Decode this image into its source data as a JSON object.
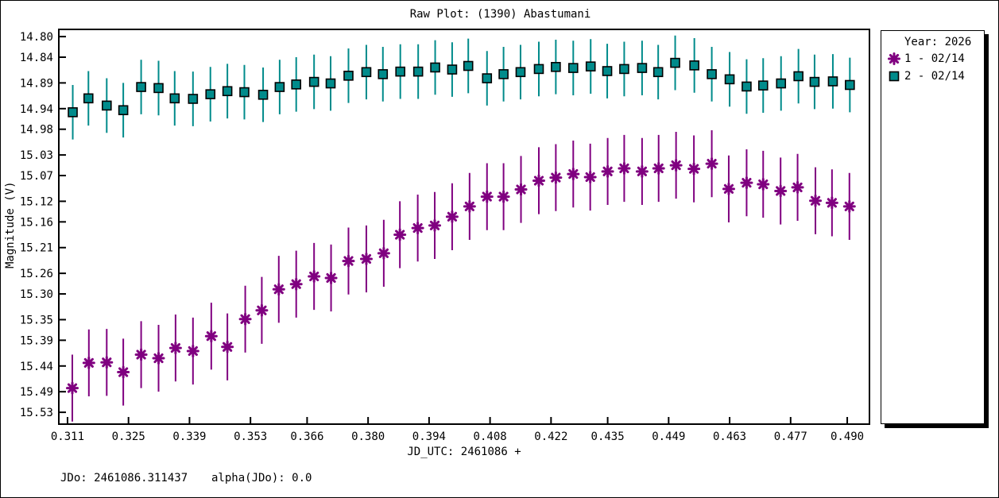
{
  "title": "Raw Plot: (1390) Abastumani",
  "legend": {
    "title": "Year: 2026",
    "items": [
      {
        "label": "1 - 02/14",
        "marker": "asterisk",
        "color": "#800080"
      },
      {
        "label": "2 - 02/14",
        "marker": "square",
        "color": "#008B8B"
      }
    ]
  },
  "footer": {
    "jdo": "JDo: 2461086.311437",
    "alpha": "alpha(JDo): 0.0"
  },
  "chart_data": {
    "type": "scatter",
    "title": "Raw Plot: (1390) Abastumani",
    "xlabel": "JD_UTC: 2461086 +",
    "ylabel": "Magnitude (V)",
    "grid": false,
    "legend_position": "right-outside",
    "y_axis_inverted_magnitude": true,
    "xlim": [
      0.309,
      0.4951
    ],
    "ylim": [
      14.786,
      15.553
    ],
    "x_tick_labels": [
      "0.311",
      "0.325",
      "0.339",
      "0.353",
      "0.366",
      "0.380",
      "0.394",
      "0.408",
      "0.422",
      "0.435",
      "0.449",
      "0.463",
      "0.477",
      "0.490"
    ],
    "y_tick_labels": [
      "14.80",
      "14.84",
      "14.89",
      "14.94",
      "14.98",
      "15.03",
      "15.07",
      "15.12",
      "15.16",
      "15.21",
      "15.26",
      "15.30",
      "15.35",
      "15.39",
      "15.44",
      "15.49",
      "15.53"
    ],
    "series": [
      {
        "name": "1 - 02/14",
        "marker": "asterisk",
        "color": "#800080",
        "error_bar": 0.065,
        "points": [
          [
            0.3121,
            15.483
          ],
          [
            0.3159,
            15.434
          ],
          [
            0.32,
            15.433
          ],
          [
            0.3238,
            15.452
          ],
          [
            0.3279,
            15.418
          ],
          [
            0.3319,
            15.425
          ],
          [
            0.3358,
            15.405
          ],
          [
            0.3398,
            15.411
          ],
          [
            0.344,
            15.382
          ],
          [
            0.3477,
            15.403
          ],
          [
            0.3518,
            15.349
          ],
          [
            0.3556,
            15.332
          ],
          [
            0.3595,
            15.291
          ],
          [
            0.3635,
            15.281
          ],
          [
            0.3676,
            15.266
          ],
          [
            0.3715,
            15.269
          ],
          [
            0.3755,
            15.236
          ],
          [
            0.3796,
            15.232
          ],
          [
            0.3836,
            15.221
          ],
          [
            0.3873,
            15.185
          ],
          [
            0.3914,
            15.172
          ],
          [
            0.3953,
            15.167
          ],
          [
            0.3993,
            15.15
          ],
          [
            0.4033,
            15.13
          ],
          [
            0.4073,
            15.111
          ],
          [
            0.4111,
            15.111
          ],
          [
            0.4151,
            15.097
          ],
          [
            0.4192,
            15.08
          ],
          [
            0.4231,
            15.074
          ],
          [
            0.4271,
            15.067
          ],
          [
            0.431,
            15.073
          ],
          [
            0.435,
            15.062
          ],
          [
            0.4388,
            15.056
          ],
          [
            0.4429,
            15.062
          ],
          [
            0.4467,
            15.056
          ],
          [
            0.4507,
            15.05
          ],
          [
            0.4548,
            15.057
          ],
          [
            0.4589,
            15.047
          ],
          [
            0.4628,
            15.096
          ],
          [
            0.4669,
            15.084
          ],
          [
            0.4707,
            15.087
          ],
          [
            0.4747,
            15.1
          ],
          [
            0.4786,
            15.093
          ],
          [
            0.4827,
            15.119
          ],
          [
            0.4865,
            15.123
          ],
          [
            0.4905,
            15.13
          ]
        ]
      },
      {
        "name": "2 - 02/14",
        "marker": "square",
        "color": "#008B8B",
        "error_bar": 0.053,
        "points": [
          [
            0.3122,
            14.947
          ],
          [
            0.3158,
            14.92
          ],
          [
            0.32,
            14.934
          ],
          [
            0.3238,
            14.943
          ],
          [
            0.3279,
            14.898
          ],
          [
            0.3319,
            14.9
          ],
          [
            0.3356,
            14.92
          ],
          [
            0.3398,
            14.921
          ],
          [
            0.3438,
            14.912
          ],
          [
            0.3477,
            14.906
          ],
          [
            0.3516,
            14.908
          ],
          [
            0.3559,
            14.913
          ],
          [
            0.3597,
            14.898
          ],
          [
            0.3635,
            14.893
          ],
          [
            0.3676,
            14.888
          ],
          [
            0.3714,
            14.891
          ],
          [
            0.3755,
            14.876
          ],
          [
            0.3796,
            14.869
          ],
          [
            0.3834,
            14.873
          ],
          [
            0.3874,
            14.868
          ],
          [
            0.3915,
            14.868
          ],
          [
            0.3954,
            14.86
          ],
          [
            0.3993,
            14.864
          ],
          [
            0.403,
            14.857
          ],
          [
            0.4073,
            14.881
          ],
          [
            0.4111,
            14.873
          ],
          [
            0.415,
            14.869
          ],
          [
            0.4192,
            14.863
          ],
          [
            0.4231,
            14.859
          ],
          [
            0.4271,
            14.861
          ],
          [
            0.4311,
            14.858
          ],
          [
            0.4349,
            14.867
          ],
          [
            0.4388,
            14.863
          ],
          [
            0.4429,
            14.861
          ],
          [
            0.4466,
            14.869
          ],
          [
            0.4505,
            14.851
          ],
          [
            0.4549,
            14.856
          ],
          [
            0.4589,
            14.873
          ],
          [
            0.463,
            14.883
          ],
          [
            0.4669,
            14.897
          ],
          [
            0.4707,
            14.895
          ],
          [
            0.4748,
            14.891
          ],
          [
            0.4788,
            14.877
          ],
          [
            0.4825,
            14.888
          ],
          [
            0.4867,
            14.887
          ],
          [
            0.4906,
            14.894
          ]
        ]
      }
    ]
  }
}
